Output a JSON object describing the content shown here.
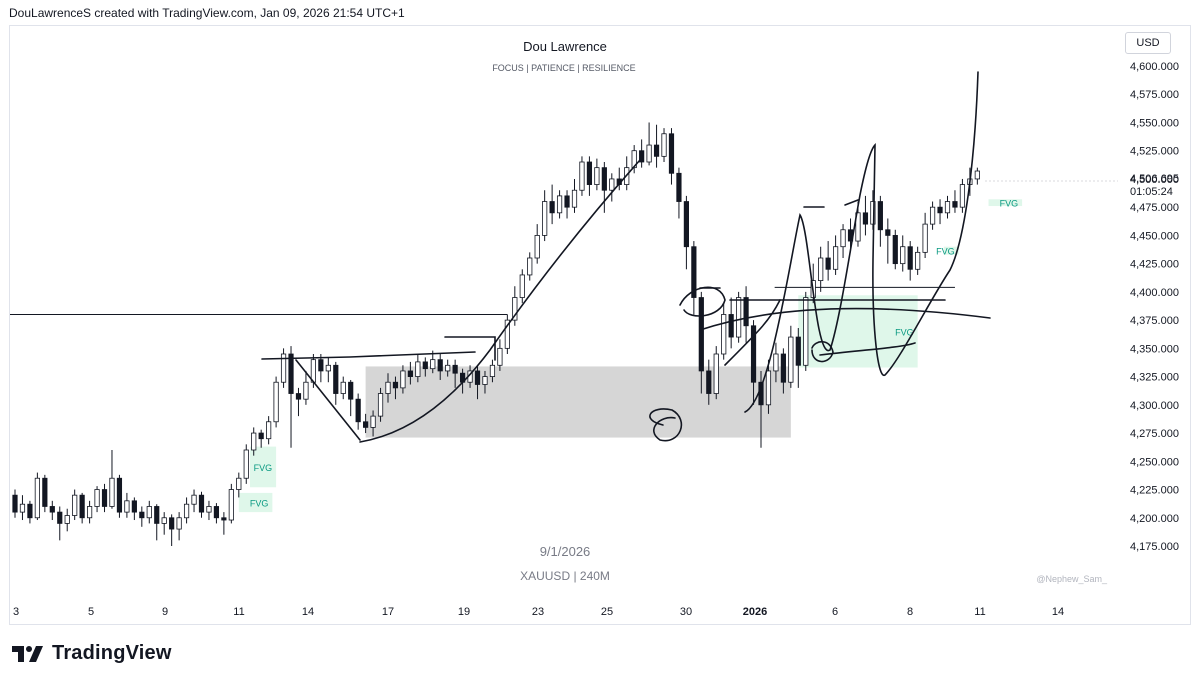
{
  "header": {
    "caption": "DouLawrenceS created with TradingView.com, Jan 09, 2026 21:54 UTC+1"
  },
  "watermark": {
    "title": "Dou Lawrence",
    "subtitle": "FOCUS  |  PATIENCE  | RESILIENCE",
    "date": "9/1/2026",
    "symbol": "XAUUSD  |  240M",
    "credit": "@Nephew_Sam_"
  },
  "price_axis": {
    "currency_button": "USD",
    "current_price": "4,506.695",
    "countdown": "01:05:24"
  },
  "brand": {
    "name": "TradingView"
  },
  "colors": {
    "bull": "#131722",
    "bear": "#131722",
    "fvg": "#7ee8b0",
    "fvg_text": "#089981",
    "zone": "#b2b5be"
  },
  "chart_data": {
    "type": "candlestick",
    "yaxis": {
      "ticks": [
        "4,600.000",
        "4,575.000",
        "4,550.000",
        "4,525.000",
        "4,500.000",
        "4,475.000",
        "4,450.000",
        "4,425.000",
        "4,400.000",
        "4,375.000",
        "4,350.000",
        "4,325.000",
        "4,300.000",
        "4,275.000",
        "4,250.000",
        "4,225.000",
        "4,200.000",
        "4,175.000"
      ],
      "range": [
        4165,
        4610
      ]
    },
    "xaxis": {
      "labels": [
        "3",
        "5",
        "9",
        "11",
        "14",
        "17",
        "19",
        "23",
        "25",
        "30",
        "2026",
        "6",
        "8",
        "11",
        "14"
      ]
    },
    "fvg_zones": [
      {
        "label": "FVG",
        "x0": 6.3,
        "x1": 7.0,
        "y0": 4227,
        "y1": 4263
      },
      {
        "label": "FVG",
        "x0": 6.0,
        "x1": 6.9,
        "y0": 4205,
        "y1": 4222
      },
      {
        "label": "FVG",
        "x0": 21.0,
        "x1": 24.2,
        "y0": 4333,
        "y1": 4397
      },
      {
        "label": "FVG",
        "x0": 24.9,
        "x1": 25.3,
        "y0": 4433,
        "y1": 4440
      },
      {
        "label": "FVG",
        "x0": 26.1,
        "x1": 27.0,
        "y0": 4476,
        "y1": 4482
      }
    ],
    "demand_zone": {
      "x0": 9.4,
      "x1": 20.8,
      "y0": 4271,
      "y1": 4334
    },
    "horizontal_lines": [
      {
        "y": 4380,
        "x0": 0,
        "x1": 13.2
      },
      {
        "y": 4404,
        "x0": 20.5,
        "x1": 25.2
      }
    ],
    "candles": [
      [
        0.0,
        4220,
        4205,
        4225,
        4200
      ],
      [
        0.2,
        4205,
        4212,
        4220,
        4198
      ],
      [
        0.4,
        4212,
        4200,
        4215,
        4195
      ],
      [
        0.6,
        4200,
        4235,
        4240,
        4198
      ],
      [
        0.8,
        4235,
        4210,
        4238,
        4205
      ],
      [
        1.0,
        4210,
        4205,
        4215,
        4198
      ],
      [
        1.2,
        4205,
        4195,
        4210,
        4180
      ],
      [
        1.4,
        4195,
        4202,
        4208,
        4188
      ],
      [
        1.6,
        4202,
        4220,
        4225,
        4198
      ],
      [
        1.8,
        4220,
        4200,
        4222,
        4195
      ],
      [
        2.0,
        4200,
        4210,
        4215,
        4195
      ],
      [
        2.2,
        4210,
        4225,
        4228,
        4205
      ],
      [
        2.4,
        4225,
        4210,
        4230,
        4205
      ],
      [
        2.6,
        4210,
        4235,
        4260,
        4208
      ],
      [
        2.8,
        4235,
        4205,
        4238,
        4200
      ],
      [
        3.0,
        4205,
        4215,
        4222,
        4200
      ],
      [
        3.2,
        4215,
        4205,
        4218,
        4198
      ],
      [
        3.4,
        4205,
        4200,
        4210,
        4192
      ],
      [
        3.6,
        4200,
        4210,
        4215,
        4195
      ],
      [
        3.8,
        4210,
        4195,
        4212,
        4180
      ],
      [
        4.0,
        4195,
        4200,
        4205,
        4185
      ],
      [
        4.2,
        4200,
        4190,
        4203,
        4175
      ],
      [
        4.4,
        4190,
        4200,
        4205,
        4180
      ],
      [
        4.6,
        4200,
        4212,
        4218,
        4195
      ],
      [
        4.8,
        4212,
        4220,
        4225,
        4205
      ],
      [
        5.0,
        4220,
        4205,
        4223,
        4200
      ],
      [
        5.2,
        4205,
        4210,
        4215,
        4198
      ],
      [
        5.4,
        4210,
        4200,
        4213,
        4195
      ],
      [
        5.6,
        4200,
        4198,
        4205,
        4185
      ],
      [
        5.8,
        4198,
        4225,
        4230,
        4195
      ],
      [
        6.0,
        4225,
        4235,
        4240,
        4218
      ],
      [
        6.2,
        4235,
        4260,
        4265,
        4230
      ],
      [
        6.4,
        4260,
        4275,
        4280,
        4255
      ],
      [
        6.6,
        4275,
        4270,
        4278,
        4262
      ],
      [
        6.8,
        4270,
        4285,
        4290,
        4265
      ],
      [
        7.0,
        4285,
        4320,
        4325,
        4280
      ],
      [
        7.2,
        4320,
        4345,
        4350,
        4315
      ],
      [
        7.4,
        4345,
        4310,
        4352,
        4262
      ],
      [
        7.6,
        4310,
        4305,
        4315,
        4290
      ],
      [
        7.8,
        4305,
        4320,
        4330,
        4300
      ],
      [
        8.0,
        4320,
        4340,
        4345,
        4315
      ],
      [
        8.2,
        4340,
        4330,
        4345,
        4320
      ],
      [
        8.4,
        4330,
        4335,
        4342,
        4320
      ],
      [
        8.6,
        4335,
        4310,
        4338,
        4300
      ],
      [
        8.8,
        4310,
        4320,
        4325,
        4305
      ],
      [
        9.0,
        4320,
        4305,
        4322,
        4290
      ],
      [
        9.2,
        4305,
        4285,
        4310,
        4278
      ],
      [
        9.4,
        4285,
        4280,
        4292,
        4275
      ],
      [
        9.6,
        4280,
        4290,
        4295,
        4272
      ],
      [
        9.8,
        4290,
        4310,
        4315,
        4285
      ],
      [
        10.0,
        4310,
        4320,
        4328,
        4302
      ],
      [
        10.2,
        4320,
        4315,
        4325,
        4305
      ],
      [
        10.4,
        4315,
        4330,
        4335,
        4310
      ],
      [
        10.6,
        4330,
        4325,
        4338,
        4318
      ],
      [
        10.8,
        4325,
        4338,
        4345,
        4320
      ],
      [
        11.0,
        4338,
        4332,
        4342,
        4325
      ],
      [
        11.2,
        4332,
        4340,
        4348,
        4328
      ],
      [
        11.4,
        4340,
        4330,
        4345,
        4322
      ],
      [
        11.6,
        4330,
        4335,
        4340,
        4325
      ],
      [
        11.8,
        4335,
        4328,
        4340,
        4315
      ],
      [
        12.0,
        4328,
        4320,
        4332,
        4310
      ],
      [
        12.2,
        4320,
        4330,
        4335,
        4315
      ],
      [
        12.4,
        4330,
        4318,
        4335,
        4305
      ],
      [
        12.6,
        4318,
        4325,
        4330,
        4310
      ],
      [
        12.8,
        4325,
        4335,
        4340,
        4320
      ],
      [
        13.0,
        4335,
        4350,
        4358,
        4330
      ],
      [
        13.2,
        4350,
        4375,
        4380,
        4345
      ],
      [
        13.4,
        4375,
        4395,
        4405,
        4370
      ],
      [
        13.6,
        4395,
        4415,
        4420,
        4390
      ],
      [
        13.8,
        4415,
        4430,
        4435,
        4410
      ],
      [
        14.0,
        4430,
        4450,
        4460,
        4425
      ],
      [
        14.2,
        4450,
        4480,
        4490,
        4445
      ],
      [
        14.4,
        4480,
        4470,
        4495,
        4460
      ],
      [
        14.6,
        4470,
        4485,
        4490,
        4465
      ],
      [
        14.8,
        4485,
        4475,
        4490,
        4465
      ],
      [
        15.0,
        4475,
        4490,
        4500,
        4470
      ],
      [
        15.2,
        4490,
        4515,
        4520,
        4485
      ],
      [
        15.4,
        4515,
        4495,
        4520,
        4485
      ],
      [
        15.6,
        4495,
        4510,
        4518,
        4490
      ],
      [
        15.8,
        4510,
        4490,
        4515,
        4470
      ],
      [
        16.0,
        4490,
        4500,
        4505,
        4480
      ],
      [
        16.2,
        4500,
        4495,
        4510,
        4490
      ],
      [
        16.4,
        4495,
        4510,
        4520,
        4490
      ],
      [
        16.6,
        4510,
        4525,
        4530,
        4505
      ],
      [
        16.8,
        4525,
        4515,
        4535,
        4510
      ],
      [
        17.0,
        4515,
        4530,
        4550,
        4512
      ],
      [
        17.2,
        4530,
        4520,
        4548,
        4510
      ],
      [
        17.4,
        4520,
        4540,
        4545,
        4515
      ],
      [
        17.6,
        4540,
        4505,
        4545,
        4495
      ],
      [
        17.8,
        4505,
        4480,
        4510,
        4465
      ],
      [
        18.0,
        4480,
        4440,
        4485,
        4420
      ],
      [
        18.2,
        4440,
        4395,
        4445,
        4380
      ],
      [
        18.4,
        4395,
        4330,
        4400,
        4310
      ],
      [
        18.6,
        4330,
        4310,
        4340,
        4300
      ],
      [
        18.8,
        4310,
        4345,
        4352,
        4305
      ],
      [
        19.0,
        4345,
        4380,
        4390,
        4340
      ],
      [
        19.2,
        4380,
        4360,
        4395,
        4350
      ],
      [
        19.4,
        4360,
        4395,
        4400,
        4355
      ],
      [
        19.6,
        4395,
        4370,
        4405,
        4355
      ],
      [
        19.8,
        4370,
        4320,
        4375,
        4300
      ],
      [
        20.0,
        4320,
        4300,
        4330,
        4262
      ],
      [
        20.2,
        4300,
        4330,
        4340,
        4292
      ],
      [
        20.4,
        4330,
        4345,
        4355,
        4320
      ],
      [
        20.6,
        4345,
        4320,
        4350,
        4310
      ],
      [
        20.8,
        4320,
        4360,
        4370,
        4315
      ],
      [
        21.0,
        4360,
        4335,
        4368,
        4315
      ],
      [
        21.2,
        4335,
        4395,
        4400,
        4330
      ],
      [
        21.4,
        4395,
        4410,
        4425,
        4390
      ],
      [
        21.6,
        4410,
        4430,
        4440,
        4400
      ],
      [
        21.8,
        4430,
        4420,
        4445,
        4410
      ],
      [
        22.0,
        4420,
        4440,
        4450,
        4415
      ],
      [
        22.2,
        4440,
        4455,
        4460,
        4430
      ],
      [
        22.4,
        4455,
        4445,
        4465,
        4435
      ],
      [
        22.6,
        4445,
        4470,
        4480,
        4440
      ],
      [
        22.8,
        4470,
        4460,
        4485,
        4450
      ],
      [
        23.0,
        4460,
        4480,
        4490,
        4455
      ],
      [
        23.2,
        4480,
        4455,
        4485,
        4440
      ],
      [
        23.4,
        4455,
        4450,
        4465,
        4425
      ],
      [
        23.6,
        4450,
        4425,
        4455,
        4420
      ],
      [
        23.8,
        4425,
        4440,
        4450,
        4418
      ],
      [
        24.0,
        4440,
        4420,
        4445,
        4410
      ],
      [
        24.2,
        4420,
        4435,
        4440,
        4415
      ],
      [
        24.4,
        4435,
        4460,
        4470,
        4430
      ],
      [
        24.6,
        4460,
        4475,
        4480,
        4455
      ],
      [
        24.8,
        4475,
        4470,
        4482,
        4460
      ],
      [
        25.0,
        4470,
        4480,
        4485,
        4465
      ],
      [
        25.2,
        4480,
        4475,
        4490,
        4470
      ],
      [
        25.4,
        4475,
        4495,
        4500,
        4470
      ],
      [
        25.6,
        4495,
        4500,
        4510,
        4485
      ],
      [
        25.8,
        4500,
        4507,
        4510,
        4495
      ]
    ]
  }
}
